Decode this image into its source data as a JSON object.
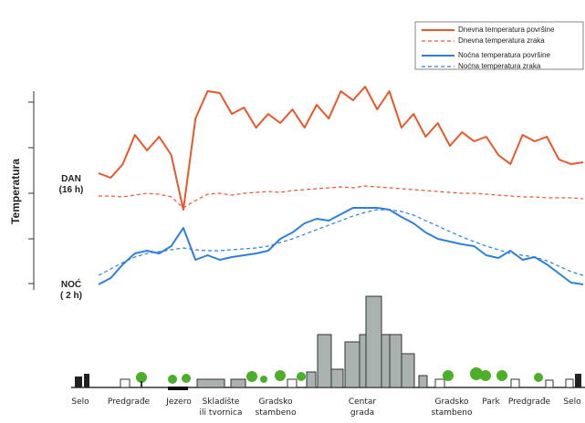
{
  "chart_data": {
    "type": "line",
    "y_label": "Temperatura",
    "annotations": [
      "DAN (16 h)",
      "NOĆ ( 2 h)"
    ],
    "zones": [
      "Selo",
      "Predgrađe",
      "Jezero",
      "Skladište ili tvornica",
      "Gradsko stambeno",
      "Centar grada",
      "Gradsko stambeno",
      "Park",
      "Predgrađe",
      "Selo"
    ],
    "x": [
      0,
      1,
      2,
      3,
      4,
      5,
      6,
      7,
      8,
      9,
      10,
      11,
      12,
      13,
      14,
      15,
      16,
      17,
      18,
      19,
      20,
      21,
      22,
      23,
      24,
      25,
      26,
      27,
      28,
      29,
      30,
      31,
      32,
      33,
      34,
      35,
      36,
      37,
      38,
      39,
      40
    ],
    "xlim": [
      0,
      40
    ],
    "ylim": [
      0,
      225
    ],
    "yticks": [
      9,
      58,
      108,
      158,
      208
    ],
    "series": [
      {
        "name": "Dnevna temperatura površine",
        "color": "#e8572a",
        "dash": false,
        "values": [
          130,
          125,
          140,
          172,
          155,
          170,
          150,
          90,
          190,
          220,
          218,
          195,
          202,
          180,
          195,
          185,
          200,
          180,
          205,
          190,
          220,
          210,
          225,
          200,
          220,
          180,
          195,
          170,
          185,
          160,
          175,
          165,
          170,
          150,
          140,
          172,
          165,
          170,
          145,
          140,
          142
        ]
      },
      {
        "name": "Dnevna temperatura zraka",
        "color": "#e8572a",
        "dash": true,
        "values": [
          105,
          105,
          104,
          106,
          108,
          107,
          104,
          92,
          100,
          107,
          108,
          106,
          108,
          109,
          110,
          109,
          111,
          112,
          113,
          114,
          115,
          114,
          116,
          115,
          114,
          113,
          112,
          111,
          110,
          109,
          108,
          108,
          107,
          106,
          105,
          104,
          104,
          103,
          103,
          103,
          102
        ]
      },
      {
        "name": "Noćna temperatura površine",
        "color": "#2e7fd6",
        "dash": false,
        "values": [
          8,
          15,
          30,
          42,
          45,
          42,
          50,
          70,
          35,
          40,
          35,
          38,
          40,
          42,
          45,
          58,
          65,
          75,
          80,
          78,
          85,
          92,
          92,
          92,
          90,
          82,
          75,
          65,
          58,
          55,
          52,
          50,
          40,
          37,
          45,
          35,
          38,
          30,
          20,
          10,
          8
        ]
      },
      {
        "name": "Noćna temperatura zraka",
        "color": "#2e7fd6",
        "dash": true,
        "values": [
          18,
          25,
          32,
          38,
          42,
          44,
          46,
          48,
          46,
          45,
          45,
          46,
          47,
          48,
          50,
          54,
          58,
          63,
          68,
          73,
          78,
          83,
          87,
          90,
          90,
          88,
          84,
          78,
          72,
          66,
          60,
          55,
          50,
          46,
          42,
          40,
          38,
          34,
          28,
          22,
          18
        ]
      }
    ]
  }
}
